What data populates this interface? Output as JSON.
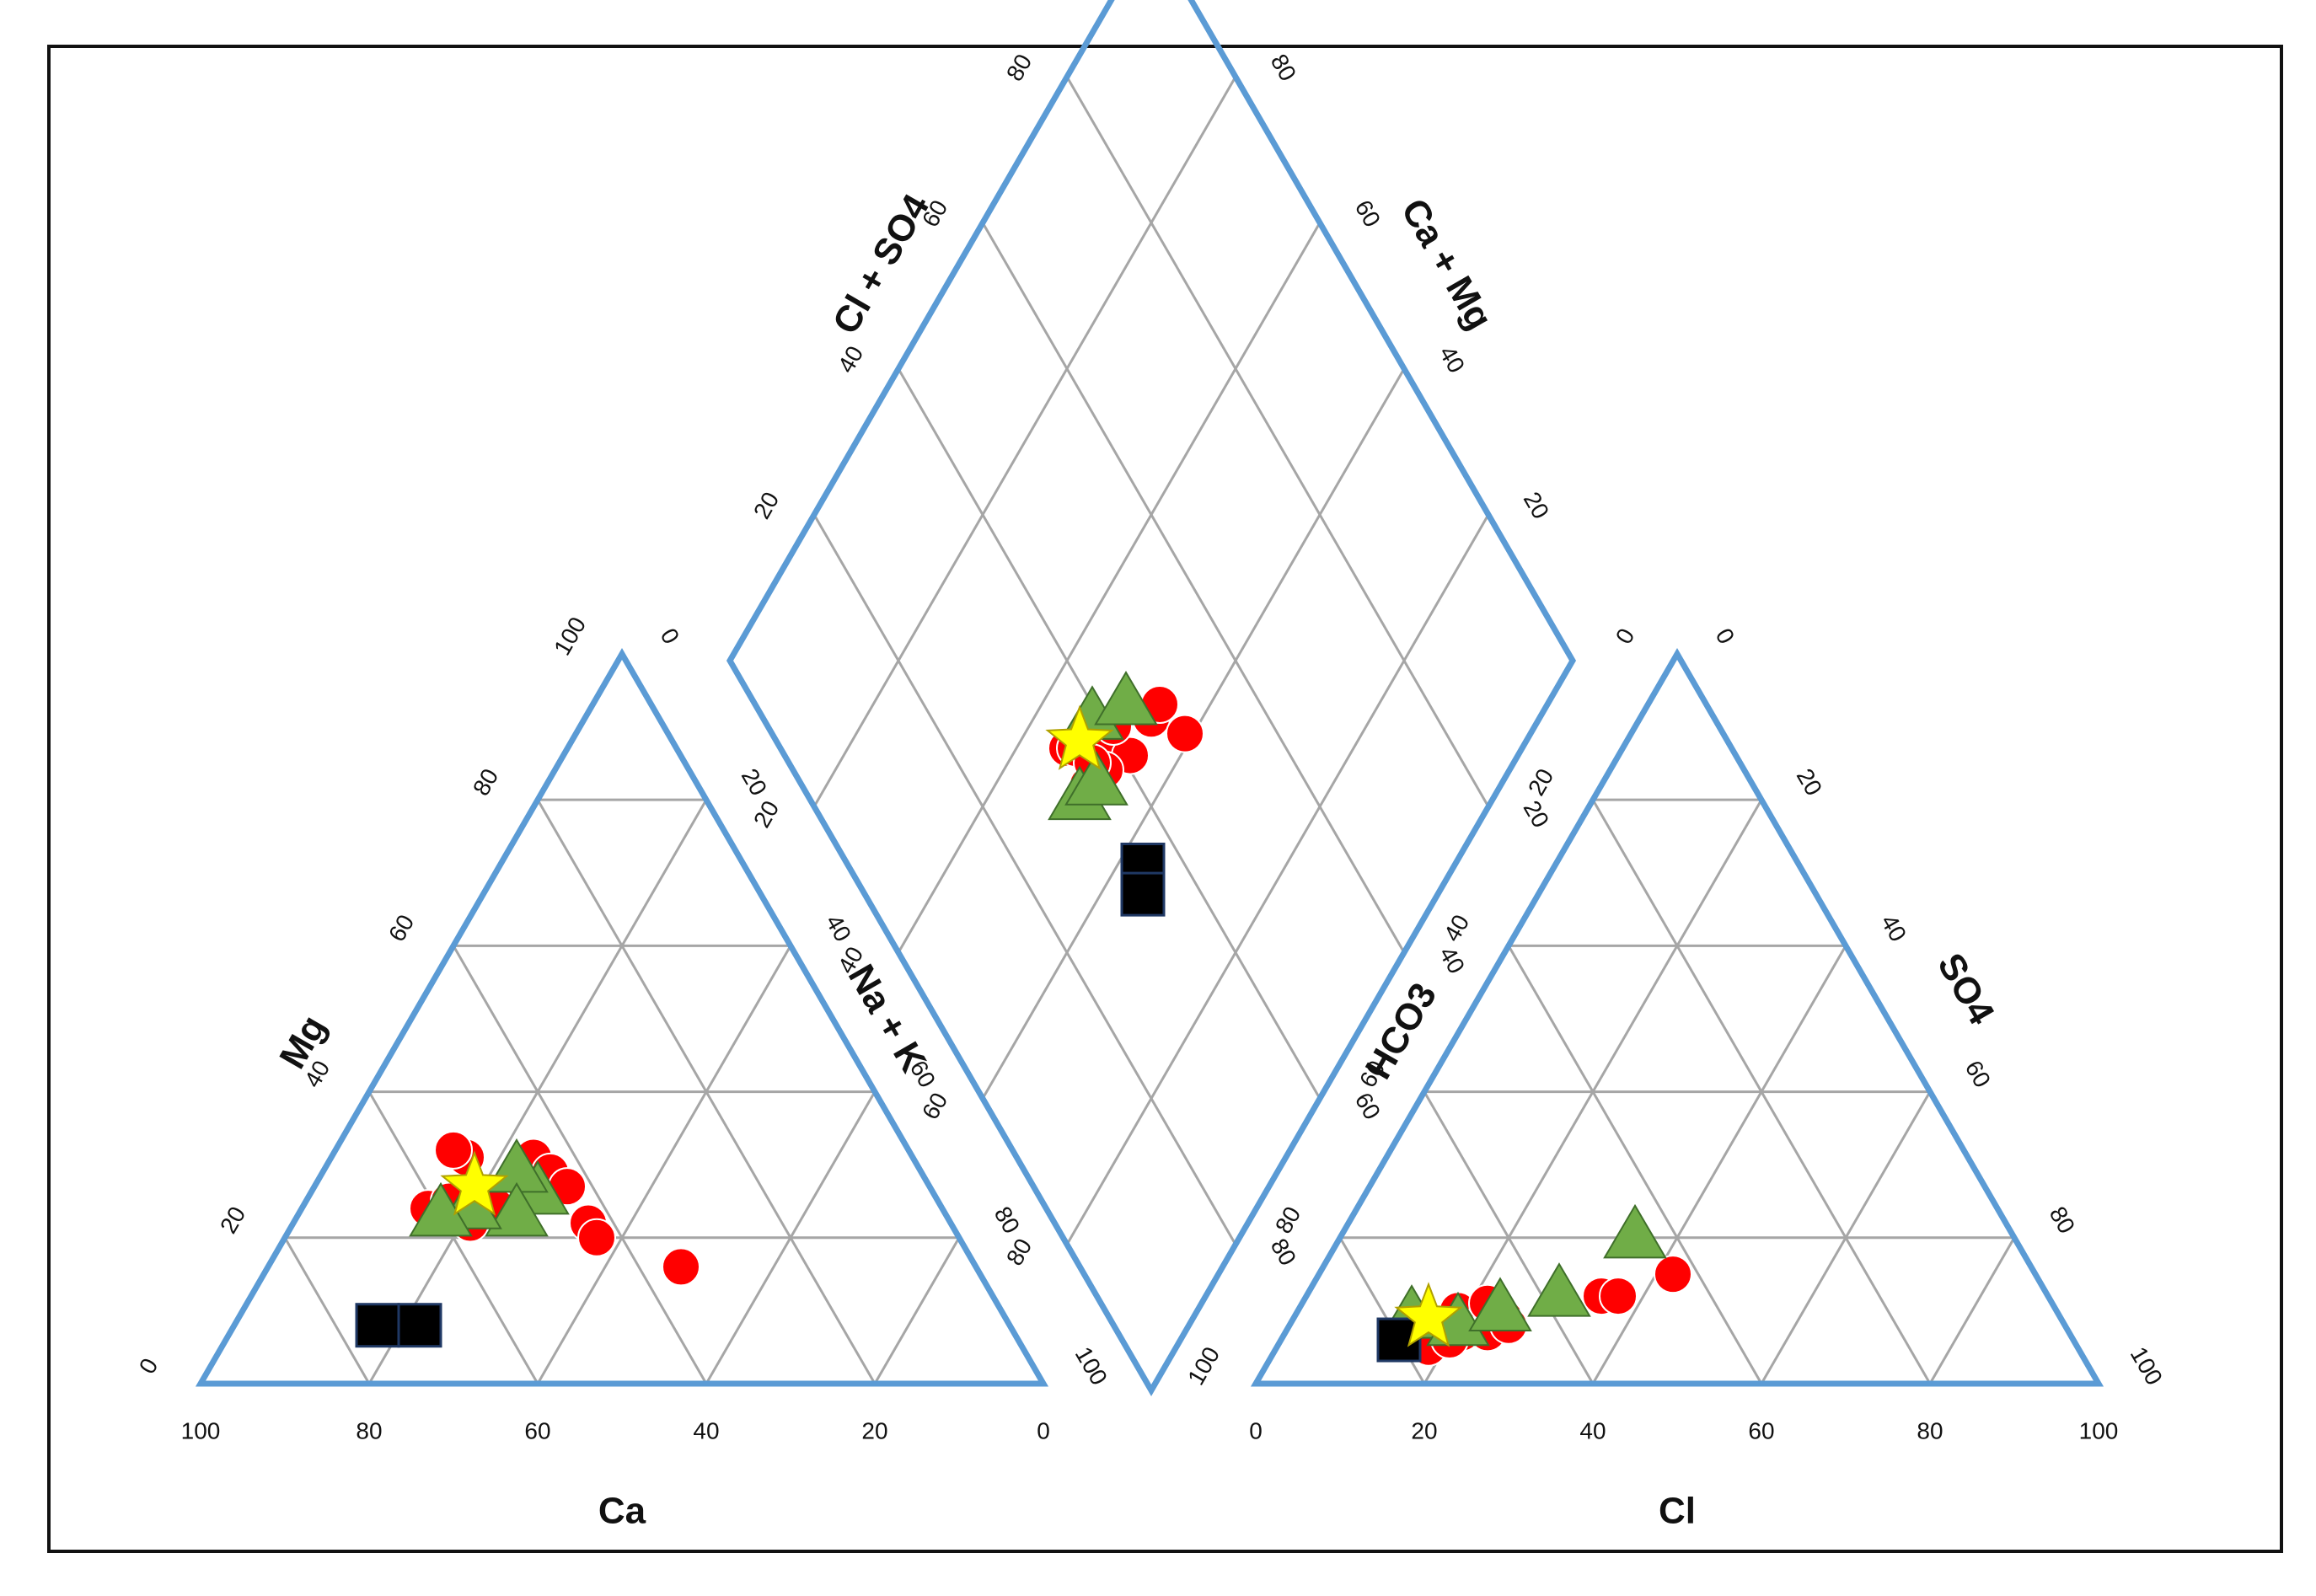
{
  "chart_data": {
    "type": "scatter",
    "subtype": "piper-trilinear",
    "colors": {
      "frame": "#5b9bd5",
      "grid": "#a6a6a6",
      "circle": "#ff0000",
      "triangle": "#70ad47",
      "triangle_edge": "#3f6f2a",
      "square": "#000000",
      "square_edge": "#1f3864",
      "star": "#ffff00",
      "star_edge": "#b0a000"
    },
    "cation": {
      "title_bottom": "Ca",
      "title_left": "Mg",
      "title_right": "Na + K",
      "bottom_ticks": [
        "100",
        "80",
        "60",
        "40",
        "20",
        "0"
      ],
      "left_ticks": [
        "0",
        "20",
        "40",
        "60",
        "80",
        "100"
      ],
      "right_ticks": [
        "0",
        "20",
        "40",
        "60",
        "80",
        "100"
      ]
    },
    "anion": {
      "title_bottom": "Cl",
      "title_left": "HCO3",
      "title_right": "SO4",
      "bottom_ticks": [
        "0",
        "20",
        "40",
        "60",
        "80",
        "100"
      ],
      "left_ticks": [
        "100",
        "80",
        "60",
        "40",
        "20",
        "0"
      ],
      "right_ticks": [
        "0",
        "20",
        "40",
        "60",
        "80",
        "100"
      ]
    },
    "diamond": {
      "title_upper_left": "Cl + SO4",
      "title_upper_right": "Ca + Mg",
      "upper_left_ticks": [
        "20",
        "40",
        "60",
        "80"
      ],
      "lower_left_ticks": [
        "20",
        "40",
        "60",
        "80"
      ],
      "upper_right_ticks": [
        "20",
        "40",
        "60",
        "80"
      ],
      "lower_right_ticks": [
        "20",
        "40",
        "60",
        "80"
      ]
    },
    "series": [
      {
        "name": "circles",
        "marker": "circle",
        "cation": [
          [
            53,
            31
          ],
          [
            54,
            32
          ],
          [
            52,
            25
          ],
          [
            48,
            28
          ],
          [
            45,
            31
          ],
          [
            44,
            29
          ],
          [
            43,
            27
          ],
          [
            43,
            22
          ],
          [
            43,
            20
          ],
          [
            35,
            16
          ],
          [
            61,
            24
          ],
          [
            58,
            25
          ],
          [
            57,
            22
          ]
        ],
        "anion": [
          [
            19,
            10
          ],
          [
            20,
            8
          ],
          [
            21,
            7
          ],
          [
            18,
            5
          ],
          [
            24,
            7
          ],
          [
            22,
            11
          ],
          [
            25,
            9
          ],
          [
            26,
            8
          ],
          [
            35,
            12
          ],
          [
            37,
            12
          ],
          [
            42,
            15
          ],
          [
            20,
            6
          ]
        ],
        "diamond": [
          [
            34,
            54
          ],
          [
            35,
            53
          ],
          [
            38,
            50
          ],
          [
            41,
            46
          ],
          [
            37,
            48
          ],
          [
            34,
            49
          ],
          [
            36,
            50
          ],
          [
            41,
            50
          ],
          [
            46,
            46
          ],
          [
            48,
            46
          ],
          [
            49,
            41
          ]
        ]
      },
      {
        "name": "triangles",
        "marker": "triangle",
        "cation": [
          [
            47,
            26
          ],
          [
            48,
            29
          ],
          [
            51,
            23
          ],
          [
            56,
            24
          ],
          [
            60,
            23
          ]
        ],
        "anion": [
          [
            14,
            9
          ],
          [
            20,
            8
          ],
          [
            24,
            10
          ],
          [
            30,
            12
          ],
          [
            35,
            20
          ]
        ],
        "diamond": [
          [
            32,
            49
          ],
          [
            35,
            48
          ],
          [
            39,
            53
          ],
          [
            44,
            50
          ]
        ]
      },
      {
        "name": "squares",
        "marker": "square",
        "cation": [
          [
            75,
            8
          ],
          [
            70,
            8
          ]
        ],
        "anion": [
          [
            14,
            6
          ]
        ],
        "diamond": [
          [
            35,
            37
          ],
          [
            33,
            35
          ]
        ]
      },
      {
        "name": "stars",
        "marker": "star",
        "cation": [
          [
            54,
            27
          ]
        ],
        "anion": [
          [
            16,
            9
          ]
        ],
        "diamond": [
          [
            36,
            53
          ]
        ]
      }
    ]
  }
}
